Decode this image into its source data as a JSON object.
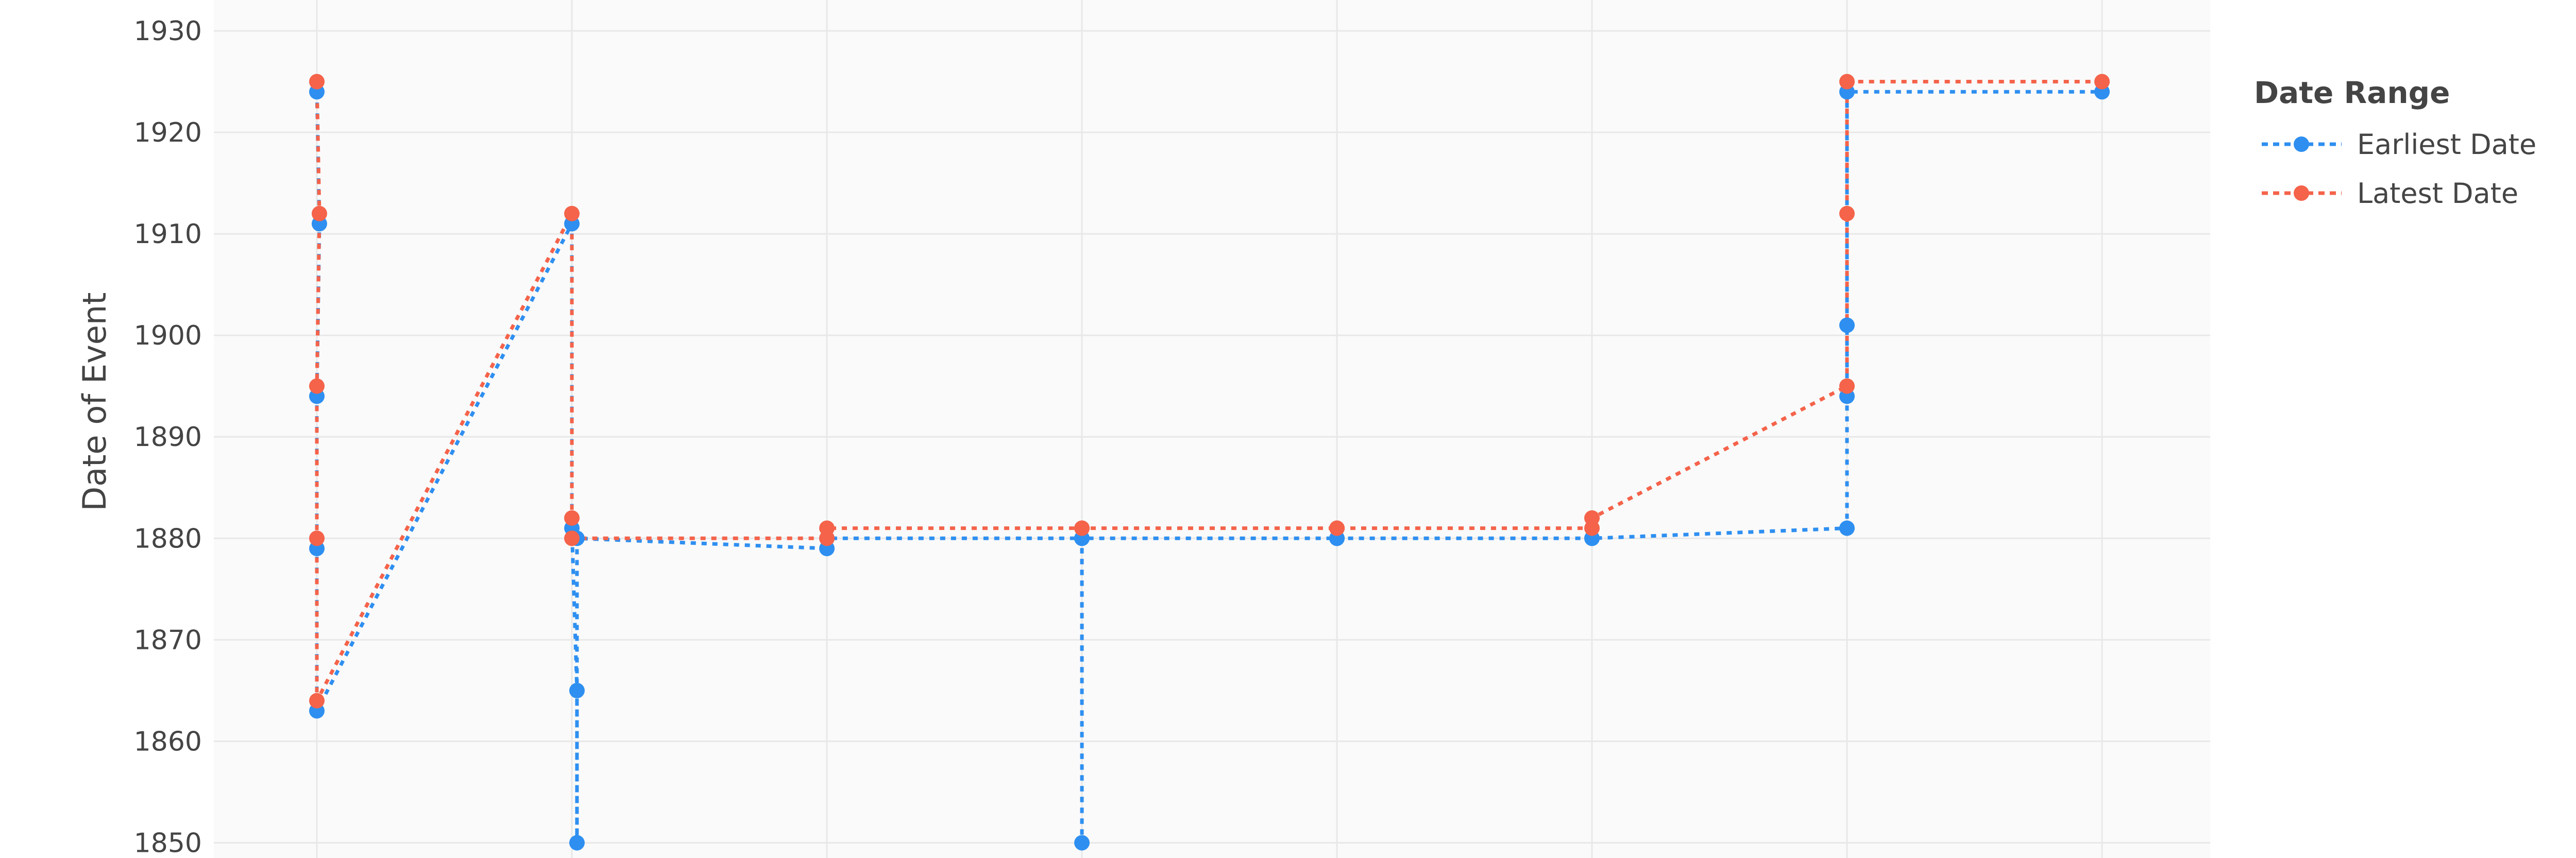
{
  "chart_data": {
    "type": "line",
    "title": "",
    "xlabel": "",
    "ylabel": "Date of Event",
    "ylim": [
      1848.5,
      1930
    ],
    "y_ticks": [
      1850,
      1860,
      1870,
      1880,
      1890,
      1900,
      1910,
      1920,
      1930
    ],
    "x_count": 8,
    "grid": true,
    "plot_bg": "#fafafa",
    "grid_color": "#e8e8e8",
    "legend": {
      "title": "Date Range",
      "placement": "right"
    },
    "series": [
      {
        "name": "Earliest Date",
        "color": "#2e8ff0",
        "points": [
          {
            "x": 0.0,
            "y": 1924
          },
          {
            "x": 0.01,
            "y": 1911
          },
          {
            "x": 0.0,
            "y": 1894
          },
          {
            "x": 0.0,
            "y": 1879
          },
          {
            "x": 0.0,
            "y": 1863
          },
          {
            "x": 1.0,
            "y": 1911
          },
          {
            "x": 1.0,
            "y": 1881
          },
          {
            "x": 1.02,
            "y": 1865
          },
          {
            "x": 1.02,
            "y": 1850
          },
          {
            "x": 1.02,
            "y": 1880
          },
          {
            "x": 2.0,
            "y": 1879
          },
          {
            "x": 2.0,
            "y": 1880
          },
          {
            "x": 3.0,
            "y": 1880
          },
          {
            "x": 3.0,
            "y": 1850
          },
          {
            "x": 3.0,
            "y": 1880
          },
          {
            "x": 4.0,
            "y": 1880
          },
          {
            "x": 4.0,
            "y": 1880
          },
          {
            "x": 5.0,
            "y": 1880
          },
          {
            "x": 5.0,
            "y": 1880
          },
          {
            "x": 6.0,
            "y": 1881
          },
          {
            "x": 6.0,
            "y": 1894
          },
          {
            "x": 6.0,
            "y": 1901
          },
          {
            "x": 6.0,
            "y": 1924
          },
          {
            "x": 7.0,
            "y": 1924
          }
        ]
      },
      {
        "name": "Latest Date",
        "color": "#f4634a",
        "points": [
          {
            "x": 0.0,
            "y": 1925
          },
          {
            "x": 0.01,
            "y": 1912
          },
          {
            "x": 0.0,
            "y": 1895
          },
          {
            "x": 0.0,
            "y": 1880
          },
          {
            "x": 0.0,
            "y": 1864
          },
          {
            "x": 1.0,
            "y": 1912
          },
          {
            "x": 1.0,
            "y": 1882
          },
          {
            "x": 1.0,
            "y": 1880
          },
          {
            "x": 2.0,
            "y": 1880
          },
          {
            "x": 2.0,
            "y": 1881
          },
          {
            "x": 3.0,
            "y": 1881
          },
          {
            "x": 3.0,
            "y": 1881
          },
          {
            "x": 4.0,
            "y": 1881
          },
          {
            "x": 4.0,
            "y": 1881
          },
          {
            "x": 5.0,
            "y": 1881
          },
          {
            "x": 5.0,
            "y": 1882
          },
          {
            "x": 6.0,
            "y": 1895
          },
          {
            "x": 6.0,
            "y": 1912
          },
          {
            "x": 6.0,
            "y": 1925
          },
          {
            "x": 7.0,
            "y": 1925
          }
        ]
      }
    ]
  }
}
